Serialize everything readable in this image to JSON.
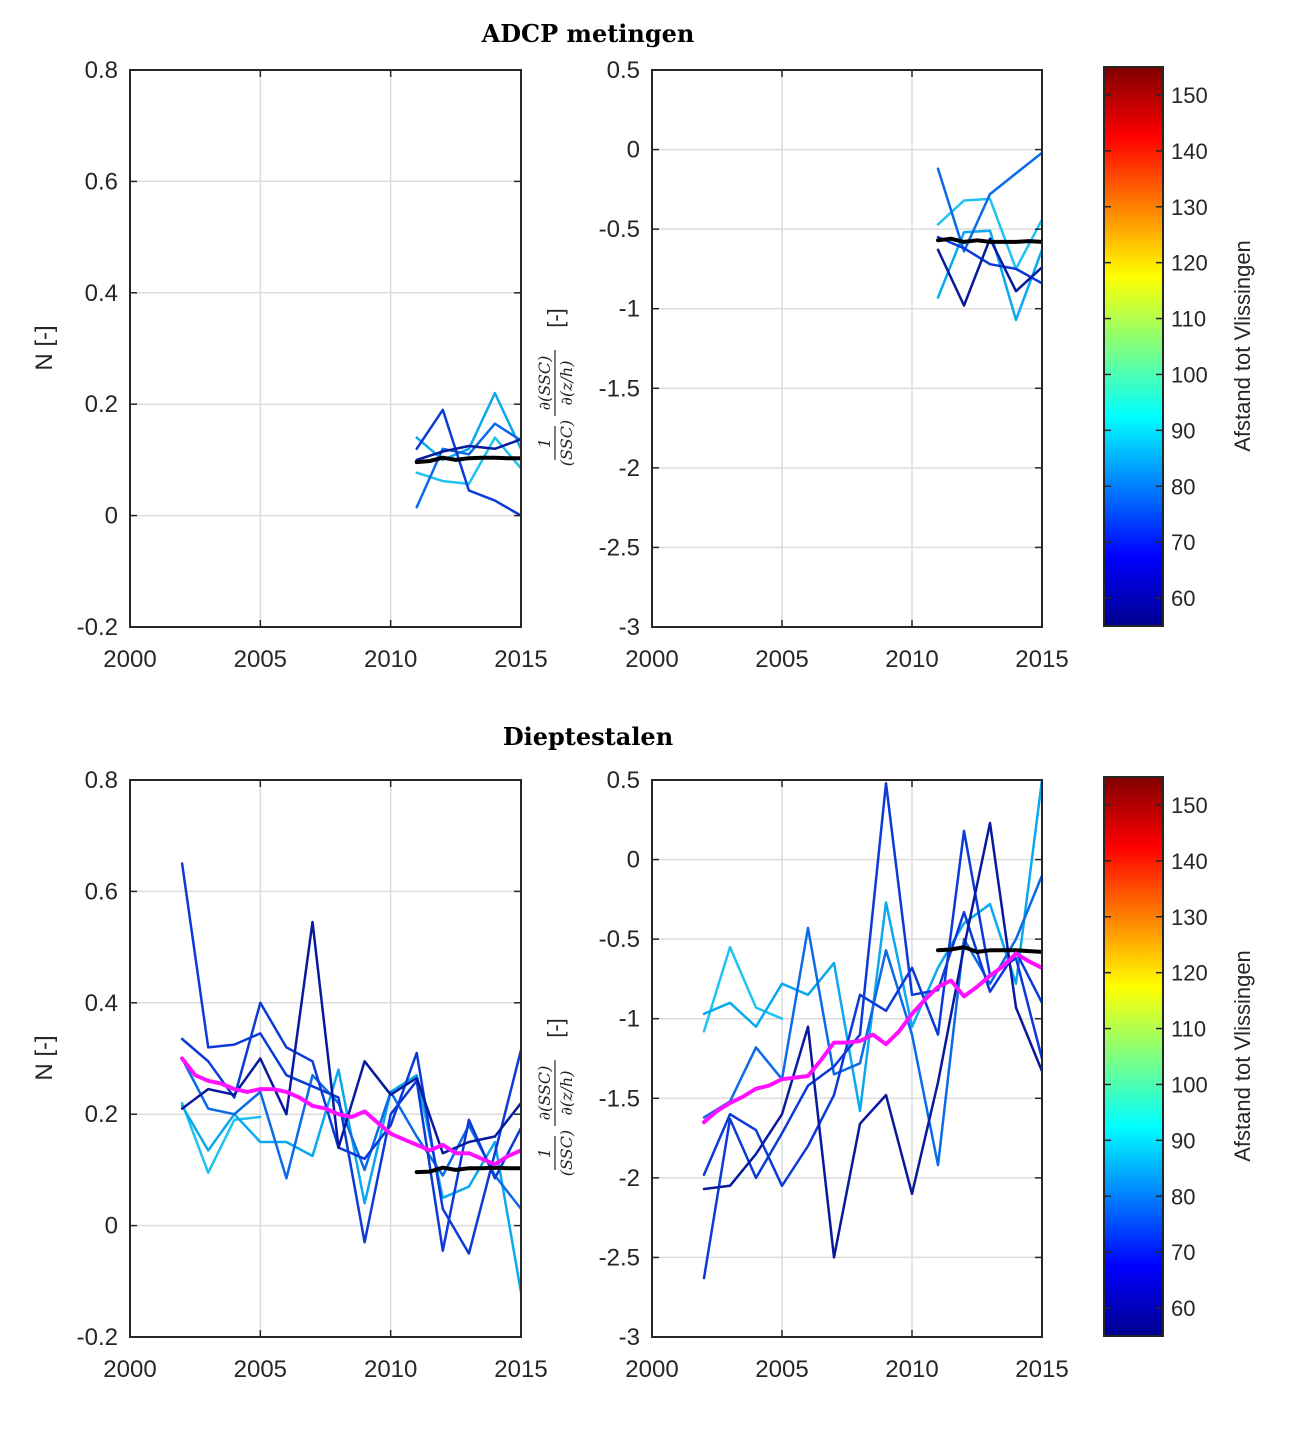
{
  "colorbar": {
    "label": "Afstand tot Vlissingen",
    "ticks": [
      "60",
      "70",
      "80",
      "90",
      "100",
      "110",
      "120",
      "130",
      "140",
      "150"
    ],
    "min": 55,
    "max": 155
  },
  "colors": {
    "lightblue": "#1ec3f2",
    "skyblue": "#0aa8ee",
    "midblue": "#0a6ae8",
    "blue": "#0b3ad8",
    "navy": "#071a9c",
    "mean": "#000000",
    "magenta": "#ff10ff"
  },
  "chart_data": [
    {
      "id": "adcp_n",
      "type": "line",
      "section_title": "ADCP metingen",
      "ylabel": "N [-]",
      "xlim": [
        2000,
        2015
      ],
      "ylim": [
        -0.2,
        0.8
      ],
      "xticks": [
        2000,
        2005,
        2010,
        2015
      ],
      "yticks": [
        -0.2,
        0,
        0.2,
        0.4,
        0.6,
        0.8
      ],
      "ytick_labels": [
        "-0.2",
        "0",
        "0.2",
        "0.4",
        "0.6",
        "0.8"
      ],
      "grid": true,
      "series": [
        {
          "color": "lightblue",
          "x": [
            2011,
            2012,
            2013,
            2014,
            2015
          ],
          "y": [
            0.077,
            0.062,
            0.057,
            0.14,
            0.085
          ]
        },
        {
          "color": "skyblue",
          "x": [
            2011,
            2012,
            2013,
            2014,
            2015
          ],
          "y": [
            0.14,
            0.1,
            0.12,
            0.22,
            0.12
          ]
        },
        {
          "color": "midblue",
          "x": [
            2011,
            2012,
            2013,
            2014,
            2015
          ],
          "y": [
            0.015,
            0.12,
            0.11,
            0.165,
            0.135
          ]
        },
        {
          "color": "blue",
          "x": [
            2011,
            2012,
            2013,
            2014,
            2015
          ],
          "y": [
            0.12,
            0.19,
            0.045,
            0.027,
            0.0
          ]
        },
        {
          "color": "navy",
          "x": [
            2011,
            2012,
            2013,
            2014,
            2015
          ],
          "y": [
            0.1,
            0.115,
            0.125,
            0.12,
            0.137
          ]
        },
        {
          "color": "mean",
          "width": 4,
          "x": [
            2011,
            2011.5,
            2012,
            2012.5,
            2013,
            2013.5,
            2014,
            2014.5,
            2015
          ],
          "y": [
            0.096,
            0.098,
            0.104,
            0.1,
            0.103,
            0.104,
            0.104,
            0.103,
            0.103
          ]
        }
      ]
    },
    {
      "id": "adcp_grad",
      "type": "line",
      "ylabel": "1/(SSC) ∂(SSC)/∂(z/h) [-]",
      "xlim": [
        2000,
        2015
      ],
      "ylim": [
        -3,
        0.5
      ],
      "xticks": [
        2000,
        2005,
        2010,
        2015
      ],
      "yticks": [
        -3,
        -2.5,
        -2,
        -1.5,
        -1,
        -0.5,
        0,
        0.5
      ],
      "ytick_labels": [
        "-3",
        "-2.5",
        "-2",
        "-1.5",
        "-1",
        "-0.5",
        "0",
        "0.5"
      ],
      "grid": true,
      "series": [
        {
          "color": "lightblue",
          "x": [
            2011,
            2012,
            2013,
            2014,
            2015
          ],
          "y": [
            -0.47,
            -0.32,
            -0.31,
            -0.75,
            -0.44
          ]
        },
        {
          "color": "skyblue",
          "x": [
            2011,
            2012,
            2013,
            2014,
            2015
          ],
          "y": [
            -0.93,
            -0.52,
            -0.51,
            -1.07,
            -0.63
          ]
        },
        {
          "color": "midblue",
          "x": [
            2011,
            2012,
            2013,
            2014,
            2015
          ],
          "y": [
            -0.12,
            -0.64,
            -0.28,
            -0.15,
            -0.02
          ]
        },
        {
          "color": "blue",
          "x": [
            2011,
            2012,
            2013,
            2014,
            2015
          ],
          "y": [
            -0.55,
            -0.62,
            -0.72,
            -0.75,
            -0.84
          ]
        },
        {
          "color": "navy",
          "x": [
            2011,
            2012,
            2013,
            2014,
            2015
          ],
          "y": [
            -0.63,
            -0.98,
            -0.56,
            -0.89,
            -0.74
          ]
        },
        {
          "color": "mean",
          "width": 4,
          "x": [
            2011,
            2011.5,
            2012,
            2012.5,
            2013,
            2013.5,
            2014,
            2014.5,
            2015
          ],
          "y": [
            -0.57,
            -0.56,
            -0.58,
            -0.57,
            -0.58,
            -0.58,
            -0.58,
            -0.575,
            -0.58
          ]
        }
      ]
    },
    {
      "id": "diepte_n",
      "type": "line",
      "section_title": "Dieptestalen",
      "ylabel": "N [-]",
      "xlim": [
        2000,
        2015
      ],
      "ylim": [
        -0.2,
        0.8
      ],
      "xticks": [
        2000,
        2005,
        2010,
        2015
      ],
      "yticks": [
        -0.2,
        0,
        0.2,
        0.4,
        0.6,
        0.8
      ],
      "ytick_labels": [
        "-0.2",
        "0",
        "0.2",
        "0.4",
        "0.6",
        "0.8"
      ],
      "grid": true,
      "series": [
        {
          "color": "lightblue",
          "x": [
            2002,
            2003,
            2004,
            2005
          ],
          "y": [
            0.22,
            0.095,
            0.19,
            0.195
          ]
        },
        {
          "color": "skyblue",
          "x": [
            2002,
            2003,
            2004,
            2005,
            2006,
            2007,
            2008,
            2009,
            2010,
            2011,
            2012,
            2013,
            2014,
            2015
          ],
          "y": [
            0.215,
            0.135,
            0.2,
            0.15,
            0.15,
            0.125,
            0.28,
            0.04,
            0.24,
            0.27,
            0.05,
            0.07,
            0.15,
            -0.12
          ]
        },
        {
          "color": "midblue",
          "x": [
            2002,
            2003,
            2004,
            2005,
            2006,
            2007,
            2008,
            2009,
            2010,
            2011,
            2012,
            2013,
            2014,
            2015
          ],
          "y": [
            0.3,
            0.21,
            0.2,
            0.24,
            0.085,
            0.27,
            0.22,
            0.1,
            0.24,
            0.16,
            0.09,
            0.18,
            0.09,
            0.03
          ]
        },
        {
          "color": "blue",
          "x": [
            2002,
            2003,
            2004,
            2005,
            2006,
            2007,
            2008,
            2009,
            2010,
            2011,
            2012,
            2013,
            2014,
            2015
          ],
          "y": [
            0.65,
            0.32,
            0.325,
            0.345,
            0.27,
            0.25,
            0.23,
            -0.03,
            0.2,
            0.26,
            -0.045,
            0.19,
            0.085,
            0.175
          ]
        },
        {
          "color": "blue",
          "x": [
            2002,
            2003,
            2004,
            2005,
            2006,
            2007,
            2008,
            2009,
            2010,
            2011,
            2012,
            2013,
            2014,
            2015
          ],
          "y": [
            0.335,
            0.295,
            0.23,
            0.4,
            0.32,
            0.295,
            0.14,
            0.12,
            0.18,
            0.31,
            0.03,
            -0.05,
            0.13,
            0.315
          ]
        },
        {
          "color": "navy",
          "x": [
            2002,
            2003,
            2004,
            2005,
            2006,
            2007,
            2008,
            2009,
            2010,
            2011,
            2012,
            2013,
            2014,
            2015
          ],
          "y": [
            0.21,
            0.245,
            0.235,
            0.3,
            0.2,
            0.545,
            0.14,
            0.295,
            0.235,
            0.265,
            0.13,
            0.15,
            0.16,
            0.22
          ]
        },
        {
          "color": "mean",
          "width": 4,
          "x": [
            2011,
            2011.5,
            2012,
            2012.5,
            2013,
            2013.5,
            2014,
            2014.5,
            2015
          ],
          "y": [
            0.096,
            0.097,
            0.104,
            0.1,
            0.103,
            0.103,
            0.104,
            0.103,
            0.103
          ]
        },
        {
          "color": "magenta",
          "width": 4,
          "x": [
            2002,
            2002.5,
            2003,
            2003.5,
            2004,
            2004.5,
            2005,
            2005.5,
            2006,
            2006.5,
            2007,
            2007.5,
            2008,
            2008.5,
            2009,
            2009.5,
            2010,
            2010.5,
            2011,
            2011.5,
            2012,
            2012.5,
            2013,
            2013.5,
            2014,
            2014.5,
            2015
          ],
          "y": [
            0.3,
            0.27,
            0.26,
            0.255,
            0.245,
            0.24,
            0.245,
            0.245,
            0.24,
            0.23,
            0.215,
            0.21,
            0.2,
            0.195,
            0.205,
            0.185,
            0.165,
            0.155,
            0.145,
            0.135,
            0.145,
            0.13,
            0.13,
            0.12,
            0.11,
            0.125,
            0.135
          ]
        }
      ]
    },
    {
      "id": "diepte_grad",
      "type": "line",
      "ylabel": "1/(SSC) ∂(SSC)/∂(z/h) [-]",
      "xlim": [
        2000,
        2015
      ],
      "ylim": [
        -3,
        0.5
      ],
      "xticks": [
        2000,
        2005,
        2010,
        2015
      ],
      "yticks": [
        -3,
        -2.5,
        -2,
        -1.5,
        -1,
        -0.5,
        0,
        0.5
      ],
      "ytick_labels": [
        "-3",
        "-2.5",
        "-2",
        "-1.5",
        "-1",
        "-0.5",
        "0",
        "0.5"
      ],
      "grid": true,
      "series": [
        {
          "color": "lightblue",
          "x": [
            2002,
            2003,
            2004,
            2005
          ],
          "y": [
            -1.08,
            -0.55,
            -0.93,
            -1.0
          ]
        },
        {
          "color": "skyblue",
          "x": [
            2002,
            2003,
            2004,
            2005,
            2006,
            2007,
            2008,
            2009,
            2010,
            2011,
            2012,
            2013,
            2014,
            2015
          ],
          "y": [
            -0.97,
            -0.9,
            -1.05,
            -0.78,
            -0.85,
            -0.65,
            -1.58,
            -0.27,
            -1.05,
            -0.68,
            -0.4,
            -0.28,
            -0.78,
            0.5
          ]
        },
        {
          "color": "midblue",
          "x": [
            2002,
            2003,
            2004,
            2005,
            2006,
            2007,
            2008,
            2009,
            2010,
            2011,
            2012,
            2013,
            2014,
            2015
          ],
          "y": [
            -1.62,
            -1.52,
            -1.18,
            -1.38,
            -0.43,
            -1.35,
            -1.28,
            -0.57,
            -1.1,
            -1.92,
            -0.5,
            -0.78,
            -0.5,
            -0.1
          ]
        },
        {
          "color": "blue",
          "x": [
            2002,
            2003,
            2004,
            2005,
            2006,
            2007,
            2008,
            2009,
            2010,
            2011,
            2012,
            2013,
            2014,
            2015
          ],
          "y": [
            -2.63,
            -1.63,
            -2.0,
            -1.72,
            -1.42,
            -1.3,
            -1.1,
            0.48,
            -0.85,
            -0.82,
            -0.33,
            -0.83,
            -0.58,
            -0.9
          ]
        },
        {
          "color": "blue",
          "x": [
            2002,
            2003,
            2004,
            2005,
            2006,
            2007,
            2008,
            2009,
            2010,
            2011,
            2012,
            2013,
            2014,
            2015
          ],
          "y": [
            -1.98,
            -1.6,
            -1.7,
            -2.05,
            -1.8,
            -1.48,
            -0.85,
            -0.95,
            -0.68,
            -1.1,
            0.18,
            -0.73,
            -0.62,
            -1.25
          ]
        },
        {
          "color": "navy",
          "x": [
            2002,
            2003,
            2004,
            2005,
            2006,
            2007,
            2008,
            2009,
            2010,
            2011,
            2012,
            2013,
            2014,
            2015
          ],
          "y": [
            -2.07,
            -2.05,
            -1.85,
            -1.6,
            -1.05,
            -2.5,
            -1.66,
            -1.48,
            -2.1,
            -1.4,
            -0.55,
            0.23,
            -0.93,
            -1.33
          ]
        },
        {
          "color": "mean",
          "width": 4,
          "x": [
            2011,
            2011.5,
            2012,
            2012.5,
            2013,
            2013.5,
            2014,
            2014.5,
            2015
          ],
          "y": [
            -0.57,
            -0.565,
            -0.55,
            -0.58,
            -0.57,
            -0.57,
            -0.57,
            -0.575,
            -0.58
          ]
        },
        {
          "color": "magenta",
          "width": 4,
          "x": [
            2002,
            2002.5,
            2003,
            2003.5,
            2004,
            2004.5,
            2005,
            2005.5,
            2006,
            2006.5,
            2007,
            2007.5,
            2008,
            2008.5,
            2009,
            2009.5,
            2010,
            2010.5,
            2011,
            2011.5,
            2012,
            2012.5,
            2013,
            2013.5,
            2014,
            2014.5,
            2015
          ],
          "y": [
            -1.65,
            -1.58,
            -1.53,
            -1.49,
            -1.44,
            -1.42,
            -1.38,
            -1.37,
            -1.36,
            -1.26,
            -1.15,
            -1.15,
            -1.14,
            -1.1,
            -1.16,
            -1.08,
            -0.97,
            -0.88,
            -0.8,
            -0.76,
            -0.86,
            -0.8,
            -0.73,
            -0.67,
            -0.59,
            -0.64,
            -0.68
          ]
        }
      ]
    }
  ]
}
